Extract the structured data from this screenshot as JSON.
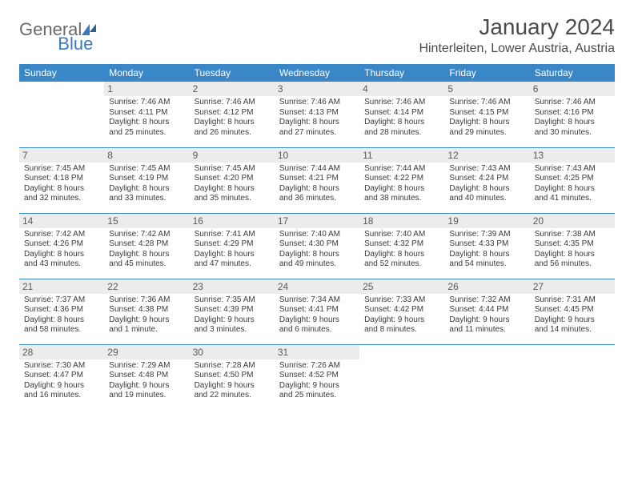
{
  "brand": {
    "text1": "General",
    "text2": "Blue"
  },
  "title": "January 2024",
  "location": "Hinterleiten, Lower Austria, Austria",
  "colors": {
    "header_bg": "#3a87c7",
    "header_text": "#ffffff",
    "daynum_bg": "#ececec",
    "border": "#3a87c7",
    "text": "#3a3a3a"
  },
  "day_headers": [
    "Sunday",
    "Monday",
    "Tuesday",
    "Wednesday",
    "Thursday",
    "Friday",
    "Saturday"
  ],
  "weeks": [
    [
      null,
      {
        "n": "1",
        "sr": "7:46 AM",
        "ss": "4:11 PM",
        "dy": "8 hours and 25 minutes."
      },
      {
        "n": "2",
        "sr": "7:46 AM",
        "ss": "4:12 PM",
        "dy": "8 hours and 26 minutes."
      },
      {
        "n": "3",
        "sr": "7:46 AM",
        "ss": "4:13 PM",
        "dy": "8 hours and 27 minutes."
      },
      {
        "n": "4",
        "sr": "7:46 AM",
        "ss": "4:14 PM",
        "dy": "8 hours and 28 minutes."
      },
      {
        "n": "5",
        "sr": "7:46 AM",
        "ss": "4:15 PM",
        "dy": "8 hours and 29 minutes."
      },
      {
        "n": "6",
        "sr": "7:46 AM",
        "ss": "4:16 PM",
        "dy": "8 hours and 30 minutes."
      }
    ],
    [
      {
        "n": "7",
        "sr": "7:45 AM",
        "ss": "4:18 PM",
        "dy": "8 hours and 32 minutes."
      },
      {
        "n": "8",
        "sr": "7:45 AM",
        "ss": "4:19 PM",
        "dy": "8 hours and 33 minutes."
      },
      {
        "n": "9",
        "sr": "7:45 AM",
        "ss": "4:20 PM",
        "dy": "8 hours and 35 minutes."
      },
      {
        "n": "10",
        "sr": "7:44 AM",
        "ss": "4:21 PM",
        "dy": "8 hours and 36 minutes."
      },
      {
        "n": "11",
        "sr": "7:44 AM",
        "ss": "4:22 PM",
        "dy": "8 hours and 38 minutes."
      },
      {
        "n": "12",
        "sr": "7:43 AM",
        "ss": "4:24 PM",
        "dy": "8 hours and 40 minutes."
      },
      {
        "n": "13",
        "sr": "7:43 AM",
        "ss": "4:25 PM",
        "dy": "8 hours and 41 minutes."
      }
    ],
    [
      {
        "n": "14",
        "sr": "7:42 AM",
        "ss": "4:26 PM",
        "dy": "8 hours and 43 minutes."
      },
      {
        "n": "15",
        "sr": "7:42 AM",
        "ss": "4:28 PM",
        "dy": "8 hours and 45 minutes."
      },
      {
        "n": "16",
        "sr": "7:41 AM",
        "ss": "4:29 PM",
        "dy": "8 hours and 47 minutes."
      },
      {
        "n": "17",
        "sr": "7:40 AM",
        "ss": "4:30 PM",
        "dy": "8 hours and 49 minutes."
      },
      {
        "n": "18",
        "sr": "7:40 AM",
        "ss": "4:32 PM",
        "dy": "8 hours and 52 minutes."
      },
      {
        "n": "19",
        "sr": "7:39 AM",
        "ss": "4:33 PM",
        "dy": "8 hours and 54 minutes."
      },
      {
        "n": "20",
        "sr": "7:38 AM",
        "ss": "4:35 PM",
        "dy": "8 hours and 56 minutes."
      }
    ],
    [
      {
        "n": "21",
        "sr": "7:37 AM",
        "ss": "4:36 PM",
        "dy": "8 hours and 58 minutes."
      },
      {
        "n": "22",
        "sr": "7:36 AM",
        "ss": "4:38 PM",
        "dy": "9 hours and 1 minute."
      },
      {
        "n": "23",
        "sr": "7:35 AM",
        "ss": "4:39 PM",
        "dy": "9 hours and 3 minutes."
      },
      {
        "n": "24",
        "sr": "7:34 AM",
        "ss": "4:41 PM",
        "dy": "9 hours and 6 minutes."
      },
      {
        "n": "25",
        "sr": "7:33 AM",
        "ss": "4:42 PM",
        "dy": "9 hours and 8 minutes."
      },
      {
        "n": "26",
        "sr": "7:32 AM",
        "ss": "4:44 PM",
        "dy": "9 hours and 11 minutes."
      },
      {
        "n": "27",
        "sr": "7:31 AM",
        "ss": "4:45 PM",
        "dy": "9 hours and 14 minutes."
      }
    ],
    [
      {
        "n": "28",
        "sr": "7:30 AM",
        "ss": "4:47 PM",
        "dy": "9 hours and 16 minutes."
      },
      {
        "n": "29",
        "sr": "7:29 AM",
        "ss": "4:48 PM",
        "dy": "9 hours and 19 minutes."
      },
      {
        "n": "30",
        "sr": "7:28 AM",
        "ss": "4:50 PM",
        "dy": "9 hours and 22 minutes."
      },
      {
        "n": "31",
        "sr": "7:26 AM",
        "ss": "4:52 PM",
        "dy": "9 hours and 25 minutes."
      },
      null,
      null,
      null
    ]
  ]
}
